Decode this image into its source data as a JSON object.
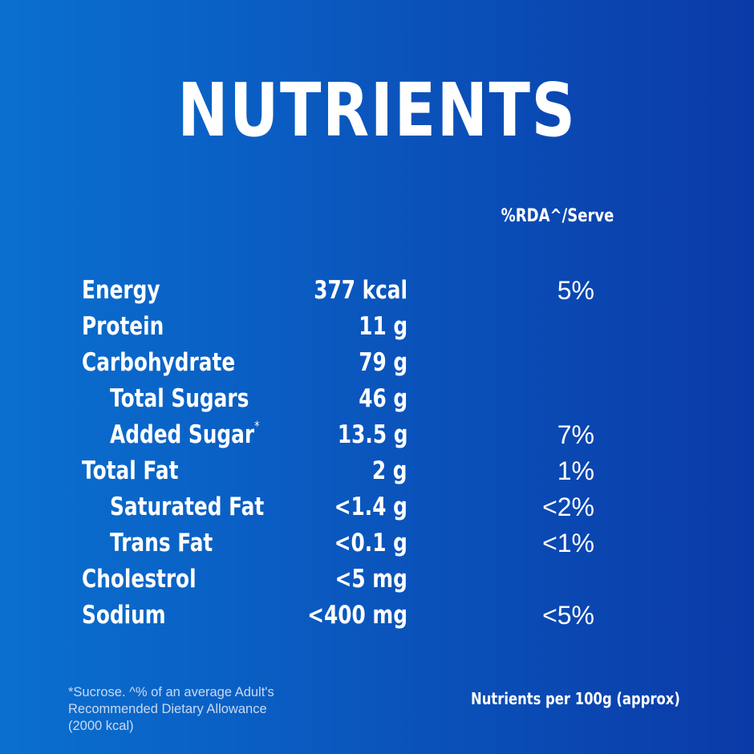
{
  "title": "NUTRIENTS",
  "rda_header": "%RDA^/Serve",
  "rows": [
    {
      "name": "Energy",
      "amount": "377 kcal",
      "rda": "5%"
    },
    {
      "name": "Protein",
      "amount": "11 g",
      "rda": ""
    },
    {
      "name": "Carbohydrate",
      "amount": "79 g",
      "rda": ""
    },
    {
      "name": "Total Sugars",
      "amount": "46 g",
      "rda": ""
    },
    {
      "name": "Added Sugar",
      "name_mark": "*",
      "amount": "13.5 g",
      "rda": "7%"
    },
    {
      "name": "Total Fat",
      "amount": "2 g",
      "rda": "1%"
    },
    {
      "name": "Saturated Fat",
      "amount": "<1.4 g",
      "rda": "<2%"
    },
    {
      "name": "Trans Fat",
      "amount": "<0.1 g",
      "rda": "<1%"
    },
    {
      "name": "Cholestrol",
      "amount": "<5 mg",
      "rda": ""
    },
    {
      "name": "Sodium",
      "amount": "<400 mg",
      "rda": "<5%"
    }
  ],
  "footnote": {
    "line1": "*Sucrose. ^% of an average Adult's",
    "line2": "Recommended Dietary Allowance",
    "line3": "(2000 kcal)"
  },
  "per_100g": "Nutrients per 100g (approx)"
}
